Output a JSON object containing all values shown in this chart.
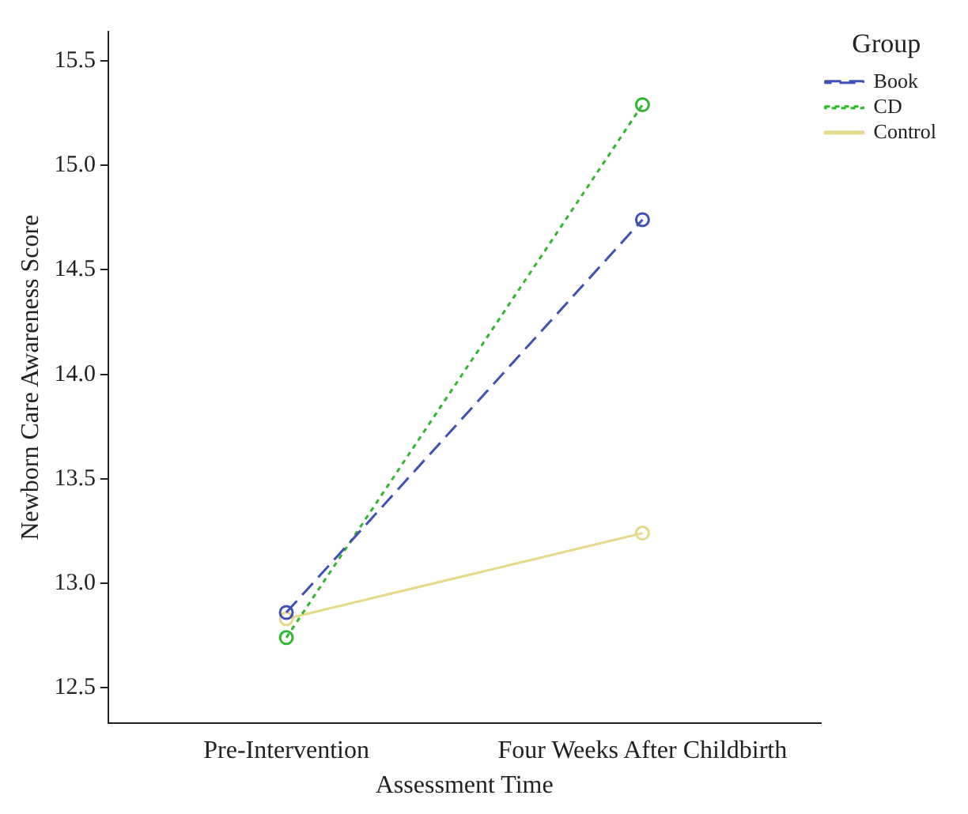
{
  "chart_data": {
    "type": "line",
    "xlabel": "Assessment Time",
    "ylabel": "Newborn Care Awareness Score",
    "legend_title": "Group",
    "categories": [
      "Pre-Intervention",
      "Four Weeks After Childbirth"
    ],
    "series": [
      {
        "name": "Book",
        "color": "#3f51b5",
        "values": [
          12.86,
          14.74
        ],
        "line_style": "dashed"
      },
      {
        "name": "CD",
        "color": "#2eb82e",
        "values": [
          12.74,
          15.29
        ],
        "line_style": "dotted"
      },
      {
        "name": "Control",
        "color": "#e6d98a",
        "values": [
          12.83,
          13.24
        ],
        "line_style": "solid"
      }
    ],
    "ylim": [
      12.33,
      15.64
    ],
    "yticks": [
      12.5,
      {
        "value": 13,
        "label": "13.0"
      },
      13.5,
      {
        "value": 14,
        "label": "14.0"
      },
      14.5,
      {
        "value": 15,
        "label": "15.0"
      },
      15.5
    ],
    "grid": false,
    "legend": "top right",
    "marker": "circle"
  }
}
